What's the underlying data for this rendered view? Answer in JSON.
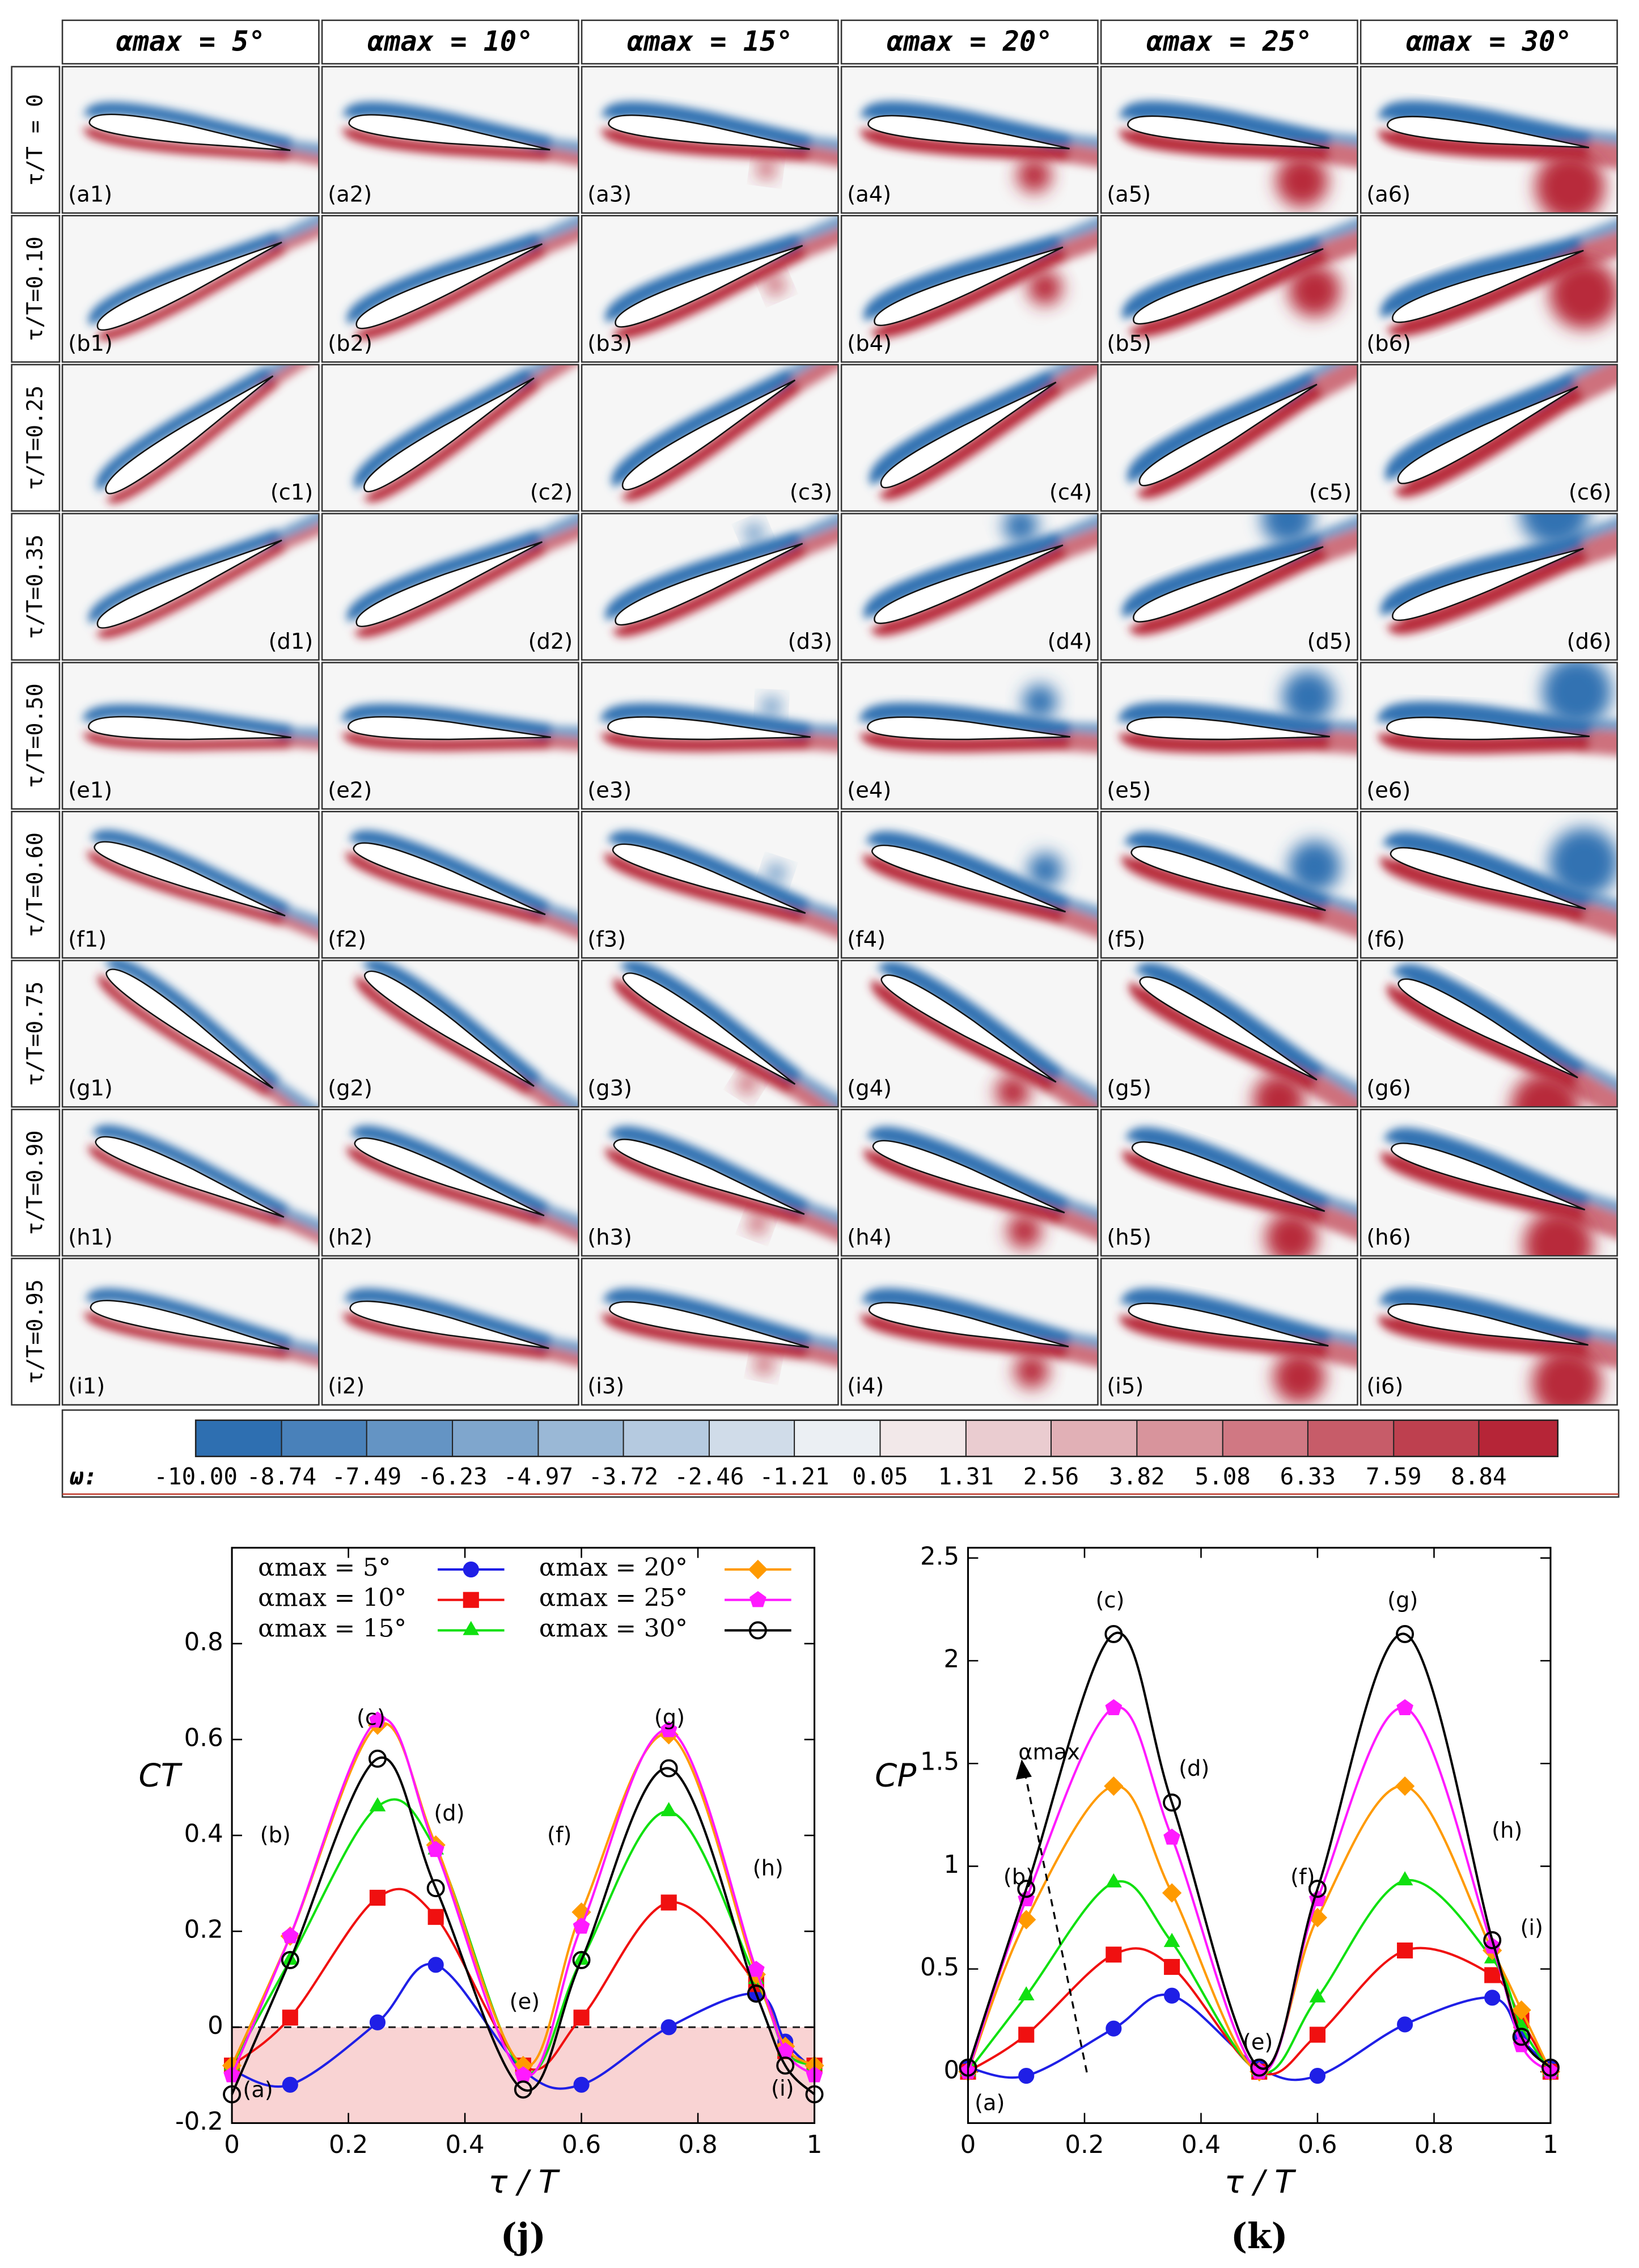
{
  "panel_grid": {
    "headers": [
      "αmax = 5°",
      "αmax = 10°",
      "αmax = 15°",
      "αmax = 20°",
      "αmax = 25°",
      "αmax = 30°"
    ],
    "row_labels": [
      "τ/T = 0",
      "τ/T=0.10",
      "τ/T=0.25",
      "τ/T=0.35",
      "τ/T=0.50",
      "τ/T=0.60",
      "τ/T=0.75",
      "τ/T=0.90",
      "τ/T=0.95"
    ],
    "panel_labels": [
      [
        "(a1)",
        "(a2)",
        "(a3)",
        "(a4)",
        "(a5)",
        "(a6)"
      ],
      [
        "(b1)",
        "(b2)",
        "(b3)",
        "(b4)",
        "(b5)",
        "(b6)"
      ],
      [
        "(c1)",
        "(c2)",
        "(c3)",
        "(c4)",
        "(c5)",
        "(c6)"
      ],
      [
        "(d1)",
        "(d2)",
        "(d3)",
        "(d4)",
        "(d5)",
        "(d6)"
      ],
      [
        "(e1)",
        "(e2)",
        "(e3)",
        "(e4)",
        "(e5)",
        "(e6)"
      ],
      [
        "(f1)",
        "(f2)",
        "(f3)",
        "(f4)",
        "(f5)",
        "(f6)"
      ],
      [
        "(g1)",
        "(g2)",
        "(g3)",
        "(g4)",
        "(g5)",
        "(g6)"
      ],
      [
        "(h1)",
        "(h2)",
        "(h3)",
        "(h4)",
        "(h5)",
        "(h6)"
      ],
      [
        "(i1)",
        "(i2)",
        "(i3)",
        "(i4)",
        "(i5)",
        "(i6)"
      ]
    ],
    "colorbar": {
      "symbol": "ω:",
      "lim": [
        -10,
        10
      ],
      "ticks": [
        {
          "value": -10,
          "label": "-10.00"
        },
        -8.74,
        -7.49,
        -6.23,
        -4.97,
        -3.72,
        -2.46,
        -1.21,
        0.05,
        1.31,
        2.56,
        3.82,
        5.08,
        6.33,
        7.59,
        8.84
      ],
      "colormap": [
        "#2166ac",
        "#f7f7f7",
        "#b2182b"
      ]
    }
  },
  "chart_data": [
    {
      "type": "line",
      "caption": "(j)",
      "xlabel": "τ / T",
      "ylabel": "CT",
      "x": [
        0,
        0.1,
        0.25,
        0.35,
        0.5,
        0.6,
        0.75,
        0.9,
        0.95,
        1
      ],
      "xlim": [
        0,
        1
      ],
      "xticks": [
        0,
        0.2,
        0.4,
        0.6,
        0.8,
        1
      ],
      "ylim": [
        -0.2,
        1
      ],
      "yticks": [
        -0.2,
        0,
        0.2,
        0.4,
        0.6,
        0.8
      ],
      "legend": true,
      "negative_region_shaded": true,
      "annotations": [
        "(a)",
        "(b)",
        "(c)",
        "(d)",
        "(e)",
        "(f)",
        "(g)",
        "(h)",
        "(i)"
      ],
      "series": [
        {
          "name": "αmax = 5°",
          "color": "#1f1fe6",
          "values": [
            -0.09,
            -0.12,
            0.01,
            0.13,
            -0.09,
            -0.12,
            0.0,
            0.07,
            -0.03,
            -0.09
          ]
        },
        {
          "name": "αmax = 10°",
          "color": "#f01010",
          "values": [
            -0.08,
            0.02,
            0.27,
            0.23,
            -0.08,
            0.02,
            0.26,
            0.09,
            -0.05,
            -0.08
          ]
        },
        {
          "name": "αmax = 15°",
          "color": "#10e010",
          "values": [
            -0.08,
            0.14,
            0.46,
            0.37,
            -0.09,
            0.14,
            0.45,
            0.1,
            -0.05,
            -0.08
          ]
        },
        {
          "name": "αmax = 20°",
          "color": "#ff9a00",
          "values": [
            -0.08,
            0.19,
            0.63,
            0.38,
            -0.08,
            0.24,
            0.61,
            0.11,
            -0.04,
            -0.08
          ]
        },
        {
          "name": "αmax = 25°",
          "color": "#ff1aff",
          "values": [
            -0.1,
            0.19,
            0.64,
            0.37,
            -0.1,
            0.21,
            0.62,
            0.12,
            -0.05,
            -0.1
          ]
        },
        {
          "name": "αmax = 30°",
          "color": "#000000",
          "values": [
            -0.14,
            0.14,
            0.56,
            0.29,
            -0.13,
            0.14,
            0.54,
            0.07,
            -0.08,
            -0.14
          ]
        }
      ]
    },
    {
      "type": "line",
      "caption": "(k)",
      "xlabel": "τ / T",
      "ylabel": "CP",
      "x": [
        0,
        0.1,
        0.25,
        0.35,
        0.5,
        0.6,
        0.75,
        0.9,
        0.95,
        1
      ],
      "xlim": [
        0,
        1
      ],
      "xticks": [
        0,
        0.2,
        0.4,
        0.6,
        0.8,
        1
      ],
      "ylim": [
        -0.25,
        2.55
      ],
      "yticks": [
        0,
        0.5,
        1,
        1.5,
        2,
        2.5
      ],
      "legend": false,
      "negative_region_shaded": false,
      "annotations": [
        "(a)",
        "(b)",
        "(c)",
        "(d)",
        "(e)",
        "(f)",
        "(g)",
        "(h)",
        "(i)",
        "αmax"
      ],
      "series": [
        {
          "color": "#1f1fe6",
          "values": [
            0.02,
            -0.02,
            0.21,
            0.37,
            0.02,
            -0.02,
            0.23,
            0.36,
            0.16,
            0.02
          ]
        },
        {
          "color": "#f01010",
          "values": [
            0,
            0.18,
            0.57,
            0.51,
            0,
            0.18,
            0.59,
            0.47,
            0.25,
            0
          ]
        },
        {
          "color": "#10e010",
          "values": [
            0,
            0.37,
            0.92,
            0.63,
            0,
            0.36,
            0.93,
            0.55,
            0.22,
            0
          ]
        },
        {
          "color": "#ff9a00",
          "values": [
            0,
            0.74,
            1.39,
            0.87,
            0,
            0.75,
            1.39,
            0.59,
            0.3,
            0
          ]
        },
        {
          "color": "#ff1aff",
          "values": [
            0,
            0.84,
            1.77,
            1.14,
            0,
            0.84,
            1.77,
            0.61,
            0.13,
            0
          ]
        },
        {
          "color": "#000000",
          "values": [
            0.02,
            0.89,
            2.13,
            1.31,
            0.02,
            0.89,
            2.13,
            0.64,
            0.17,
            0.02
          ]
        }
      ]
    }
  ]
}
